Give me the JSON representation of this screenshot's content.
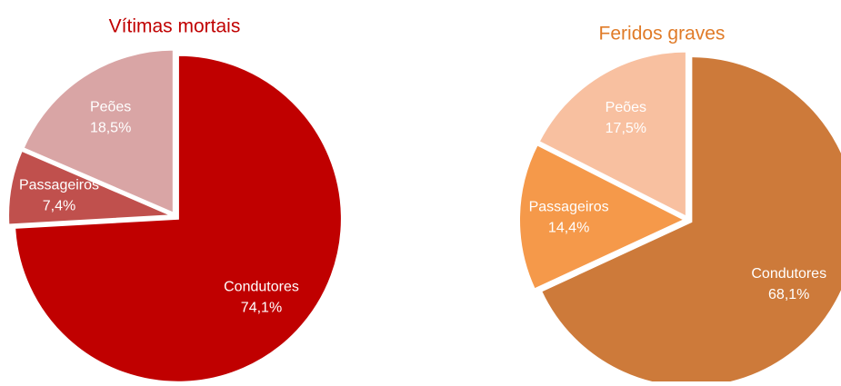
{
  "chart_data": [
    {
      "type": "pie",
      "title": "Vítimas mortais",
      "title_color": "#c00000",
      "categories": [
        "Condutores",
        "Passageiros",
        "Peões"
      ],
      "values": [
        74.1,
        7.4,
        18.5
      ],
      "value_labels": [
        "74,1%",
        "7,4%",
        "18,5%"
      ],
      "colors": [
        "#c00000",
        "#c0504d",
        "#d9a5a5"
      ]
    },
    {
      "type": "pie",
      "title": "Feridos graves",
      "title_color": "#e07b28",
      "categories": [
        "Condutores",
        "Passageiros",
        "Peões"
      ],
      "values": [
        68.1,
        14.4,
        17.5
      ],
      "value_labels": [
        "68,1%",
        "14,4%",
        "17,5%"
      ],
      "colors": [
        "#cd7a3a",
        "#f5994a",
        "#f8c0a0"
      ]
    }
  ]
}
